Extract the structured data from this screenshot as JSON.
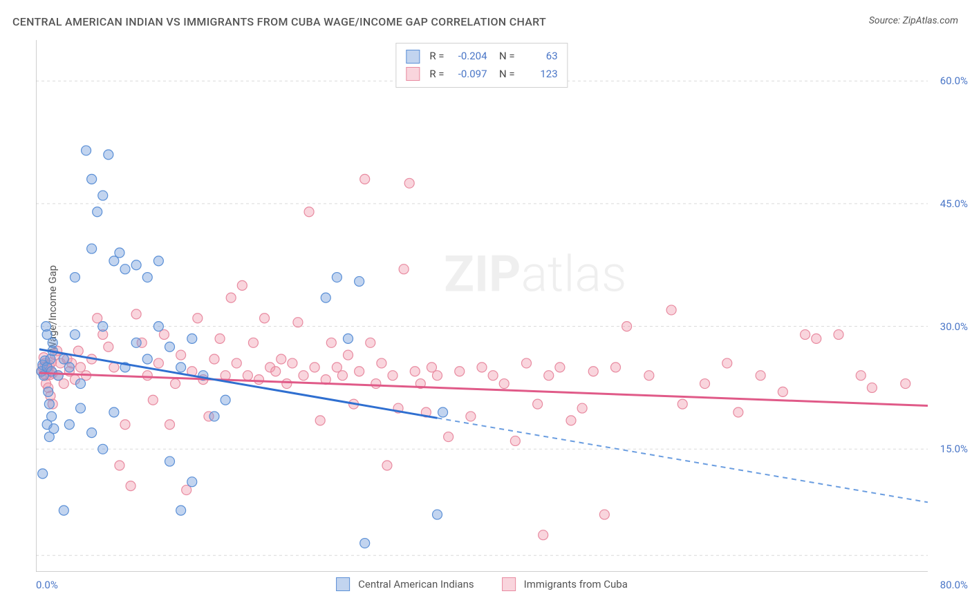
{
  "title": "CENTRAL AMERICAN INDIAN VS IMMIGRANTS FROM CUBA WAGE/INCOME GAP CORRELATION CHART",
  "source": "Source: ZipAtlas.com",
  "ylabel": "Wage/Income Gap",
  "watermark_bold": "ZIP",
  "watermark_rest": "atlas",
  "chart": {
    "type": "scatter",
    "xlim": [
      0,
      80
    ],
    "ylim": [
      0,
      65
    ],
    "x_tick_left": "0.0%",
    "x_tick_right": "80.0%",
    "y_ticks": [
      {
        "v": 15,
        "label": "15.0%"
      },
      {
        "v": 30,
        "label": "30.0%"
      },
      {
        "v": 45,
        "label": "45.0%"
      },
      {
        "v": 60,
        "label": "60.0%"
      }
    ],
    "y_grid": [
      2,
      15,
      30,
      45,
      60
    ],
    "x_minor_ticks": [
      0,
      5,
      10,
      15,
      20,
      25,
      30,
      35,
      40,
      45,
      50,
      55,
      60,
      65,
      70,
      75,
      80
    ],
    "axis_color": "#bfbfbf",
    "grid_color": "#d9d9d9",
    "tick_label_color": "#4a76c7",
    "background_color": "#ffffff",
    "series": [
      {
        "name": "Central American Indians",
        "marker_fill": "rgba(120,160,220,0.45)",
        "marker_stroke": "#5a8fd6",
        "marker_r": 7,
        "line_color": "#2f6fd0",
        "line_width": 3,
        "dash_color": "#6a9de0",
        "trend": {
          "x1": 0.3,
          "y1": 27.2,
          "x2": 36,
          "y2": 18.8,
          "x3": 80,
          "y3": 8.5
        },
        "R": "-0.204",
        "N": "63",
        "points": [
          [
            0.5,
            24.5
          ],
          [
            0.6,
            25.3
          ],
          [
            0.7,
            24.0
          ],
          [
            0.8,
            25.8
          ],
          [
            0.9,
            30.0
          ],
          [
            1.0,
            25.0
          ],
          [
            1.1,
            22.0
          ],
          [
            1.2,
            20.5
          ],
          [
            1.3,
            26.0
          ],
          [
            1.4,
            24.5
          ],
          [
            1.5,
            27.0
          ],
          [
            0.6,
            12.0
          ],
          [
            1.0,
            18.0
          ],
          [
            1.2,
            16.5
          ],
          [
            1.4,
            19.0
          ],
          [
            1.6,
            17.5
          ],
          [
            1.0,
            29.0
          ],
          [
            1.5,
            28.0
          ],
          [
            2.0,
            24.0
          ],
          [
            2.5,
            26.0
          ],
          [
            3.0,
            25.0
          ],
          [
            3.5,
            29.0
          ],
          [
            4.0,
            23.0
          ],
          [
            2.5,
            7.5
          ],
          [
            3.0,
            18.0
          ],
          [
            4.5,
            51.5
          ],
          [
            5.0,
            48.0
          ],
          [
            5.5,
            44.0
          ],
          [
            6.0,
            46.0
          ],
          [
            6.5,
            51.0
          ],
          [
            7.0,
            38.0
          ],
          [
            7.5,
            39.0
          ],
          [
            8.0,
            37.0
          ],
          [
            5.0,
            39.5
          ],
          [
            6.0,
            30.0
          ],
          [
            3.5,
            36.0
          ],
          [
            4.0,
            20.0
          ],
          [
            5.0,
            17.0
          ],
          [
            6.0,
            15.0
          ],
          [
            7.0,
            19.5
          ],
          [
            8.0,
            25.0
          ],
          [
            9.0,
            28.0
          ],
          [
            10.0,
            26.0
          ],
          [
            11.0,
            30.0
          ],
          [
            12.0,
            27.5
          ],
          [
            13.0,
            25.0
          ],
          [
            14.0,
            28.5
          ],
          [
            15.0,
            24.0
          ],
          [
            12.0,
            13.5
          ],
          [
            13.0,
            7.5
          ],
          [
            14.0,
            11.0
          ],
          [
            9.0,
            37.5
          ],
          [
            10.0,
            36.0
          ],
          [
            11.0,
            38.0
          ],
          [
            26.0,
            33.5
          ],
          [
            27.0,
            36.0
          ],
          [
            28.0,
            28.5
          ],
          [
            29.0,
            35.5
          ],
          [
            29.5,
            3.5
          ],
          [
            36.0,
            7.0
          ],
          [
            36.5,
            19.5
          ],
          [
            16.0,
            19.0
          ],
          [
            17.0,
            21.0
          ]
        ]
      },
      {
        "name": "Immigrants from Cuba",
        "marker_fill": "rgba(240,150,170,0.40)",
        "marker_stroke": "#e88aa0",
        "marker_r": 7,
        "line_color": "#e05a88",
        "line_width": 3,
        "trend": {
          "x1": 0.3,
          "y1": 24.3,
          "x2": 80,
          "y2": 20.3
        },
        "R": "-0.097",
        "N": "123",
        "points": [
          [
            0.5,
            24.5
          ],
          [
            0.6,
            25.0
          ],
          [
            0.7,
            24.2
          ],
          [
            0.8,
            25.5
          ],
          [
            0.9,
            24.0
          ],
          [
            1.0,
            25.2
          ],
          [
            1.1,
            24.8
          ],
          [
            1.2,
            25.3
          ],
          [
            1.3,
            24.1
          ],
          [
            1.4,
            25.6
          ],
          [
            1.5,
            24.3
          ],
          [
            0.7,
            26.2
          ],
          [
            0.9,
            23.0
          ],
          [
            1.1,
            22.5
          ],
          [
            1.3,
            21.5
          ],
          [
            1.5,
            20.5
          ],
          [
            1.7,
            26.5
          ],
          [
            1.9,
            27.0
          ],
          [
            2.0,
            24.0
          ],
          [
            2.2,
            25.5
          ],
          [
            2.5,
            23.0
          ],
          [
            2.8,
            26.0
          ],
          [
            3.0,
            24.5
          ],
          [
            3.2,
            25.5
          ],
          [
            3.5,
            23.5
          ],
          [
            3.8,
            27.0
          ],
          [
            4.0,
            25.0
          ],
          [
            4.5,
            24.0
          ],
          [
            5.0,
            26.0
          ],
          [
            5.5,
            31.0
          ],
          [
            6.0,
            29.0
          ],
          [
            6.5,
            27.5
          ],
          [
            7.0,
            25.0
          ],
          [
            7.5,
            13.0
          ],
          [
            8.0,
            18.0
          ],
          [
            8.5,
            10.5
          ],
          [
            9.0,
            31.5
          ],
          [
            9.5,
            28.0
          ],
          [
            10.0,
            24.0
          ],
          [
            10.5,
            21.0
          ],
          [
            11.0,
            25.5
          ],
          [
            11.5,
            29.0
          ],
          [
            12.0,
            18.0
          ],
          [
            12.5,
            23.0
          ],
          [
            13.0,
            26.5
          ],
          [
            13.5,
            10.0
          ],
          [
            14.0,
            24.5
          ],
          [
            14.5,
            31.0
          ],
          [
            15.0,
            23.5
          ],
          [
            15.5,
            19.0
          ],
          [
            16.0,
            26.0
          ],
          [
            16.5,
            28.5
          ],
          [
            17.0,
            24.0
          ],
          [
            17.5,
            33.5
          ],
          [
            18.0,
            25.5
          ],
          [
            18.5,
            35.0
          ],
          [
            19.0,
            24.0
          ],
          [
            19.5,
            28.0
          ],
          [
            20.0,
            23.5
          ],
          [
            20.5,
            31.0
          ],
          [
            21.0,
            25.0
          ],
          [
            21.5,
            24.5
          ],
          [
            22.0,
            26.0
          ],
          [
            22.5,
            23.0
          ],
          [
            23.0,
            25.5
          ],
          [
            23.5,
            30.5
          ],
          [
            24.0,
            24.0
          ],
          [
            24.5,
            44.0
          ],
          [
            25.0,
            25.0
          ],
          [
            25.5,
            18.5
          ],
          [
            26.0,
            23.5
          ],
          [
            26.5,
            28.0
          ],
          [
            27.0,
            25.0
          ],
          [
            27.5,
            24.0
          ],
          [
            28.0,
            26.5
          ],
          [
            28.5,
            20.5
          ],
          [
            29.0,
            24.5
          ],
          [
            29.5,
            48.0
          ],
          [
            30.0,
            28.0
          ],
          [
            30.5,
            23.0
          ],
          [
            31.0,
            25.5
          ],
          [
            31.5,
            13.0
          ],
          [
            32.0,
            24.0
          ],
          [
            32.5,
            20.0
          ],
          [
            33.0,
            37.0
          ],
          [
            33.5,
            47.5
          ],
          [
            34.0,
            24.5
          ],
          [
            34.5,
            23.0
          ],
          [
            35.0,
            19.5
          ],
          [
            35.5,
            25.0
          ],
          [
            36.0,
            24.0
          ],
          [
            37.0,
            16.5
          ],
          [
            38.0,
            24.5
          ],
          [
            39.0,
            19.0
          ],
          [
            40.0,
            25.0
          ],
          [
            41.0,
            24.0
          ],
          [
            42.0,
            23.0
          ],
          [
            43.0,
            16.0
          ],
          [
            44.0,
            25.5
          ],
          [
            45.0,
            20.5
          ],
          [
            45.5,
            4.5
          ],
          [
            46.0,
            24.0
          ],
          [
            47.0,
            25.0
          ],
          [
            48.0,
            18.5
          ],
          [
            49.0,
            20.0
          ],
          [
            50.0,
            24.5
          ],
          [
            51.0,
            7.0
          ],
          [
            52.0,
            25.0
          ],
          [
            53.0,
            30.0
          ],
          [
            55.0,
            24.0
          ],
          [
            57.0,
            32.0
          ],
          [
            58.0,
            20.5
          ],
          [
            60.0,
            23.0
          ],
          [
            62.0,
            25.5
          ],
          [
            63.0,
            19.5
          ],
          [
            65.0,
            24.0
          ],
          [
            67.0,
            22.0
          ],
          [
            69.0,
            29.0
          ],
          [
            70.0,
            28.5
          ],
          [
            72.0,
            29.0
          ],
          [
            74.0,
            24.0
          ],
          [
            75.0,
            22.5
          ],
          [
            78.0,
            23.0
          ]
        ]
      }
    ]
  },
  "legend_bottom": [
    {
      "label": "Central American Indians",
      "fill": "rgba(120,160,220,0.45)",
      "stroke": "#5a8fd6"
    },
    {
      "label": "Immigrants from Cuba",
      "fill": "rgba(240,150,170,0.40)",
      "stroke": "#e88aa0"
    }
  ]
}
